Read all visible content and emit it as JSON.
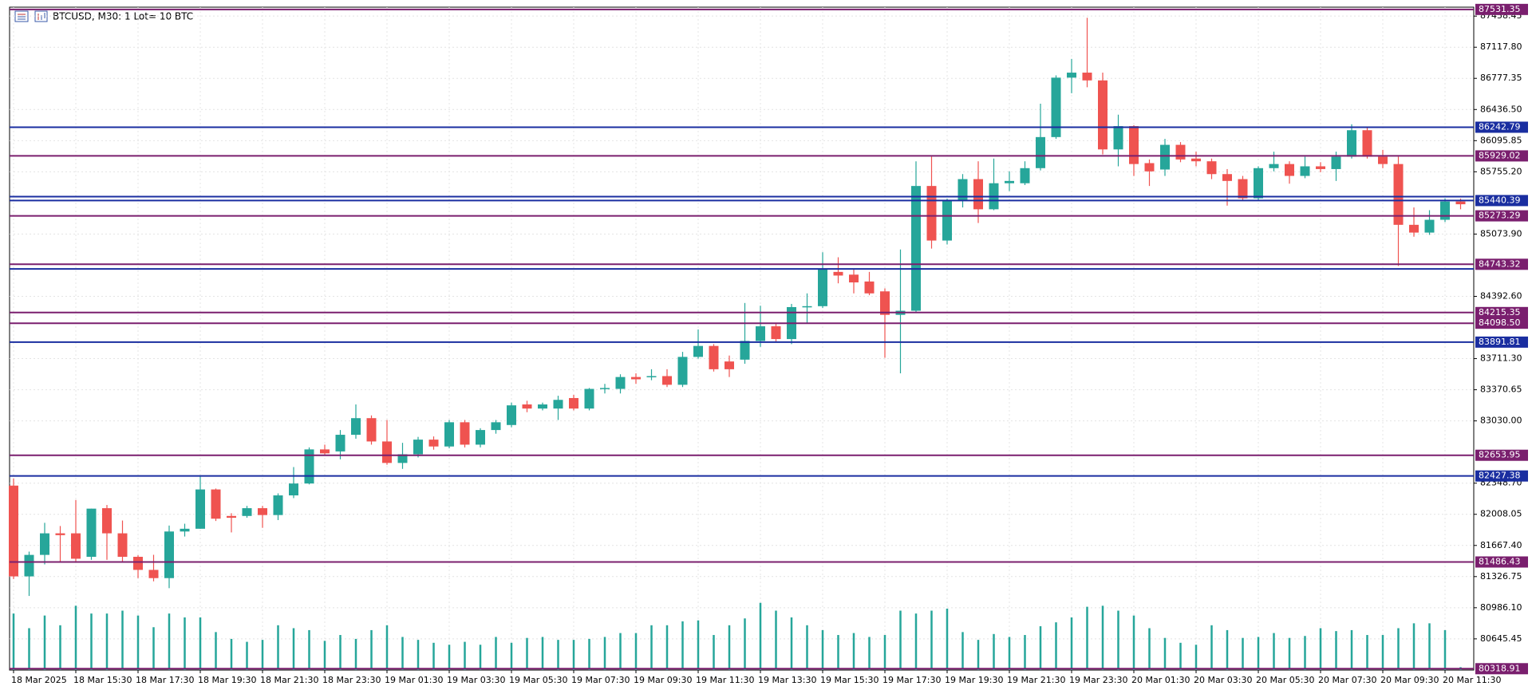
{
  "chart_data": {
    "type": "candlestick",
    "title": "BTCUSD, M30:  1 Lot= 10 BTC",
    "categories": [
      "18 Mar 2025",
      null,
      null,
      null,
      "18 Mar 15:30",
      null,
      null,
      null,
      "18 Mar 17:30",
      null,
      null,
      null,
      "18 Mar 19:30",
      null,
      null,
      null,
      "18 Mar 21:30",
      null,
      null,
      null,
      "18 Mar 23:30",
      null,
      null,
      null,
      "19 Mar 01:30",
      null,
      null,
      null,
      "19 Mar 03:30",
      null,
      null,
      null,
      "19 Mar 05:30",
      null,
      null,
      null,
      "19 Mar 07:30",
      null,
      null,
      null,
      "19 Mar 09:30",
      null,
      null,
      null,
      "19 Mar 11:30",
      null,
      null,
      null,
      "19 Mar 13:30",
      null,
      null,
      null,
      "19 Mar 15:30",
      null,
      null,
      null,
      "19 Mar 17:30",
      null,
      null,
      null,
      "19 Mar 19:30",
      null,
      null,
      null,
      "19 Mar 21:30",
      null,
      null,
      null,
      "19 Mar 23:30",
      null,
      null,
      null,
      "20 Mar 01:30",
      null,
      null,
      null,
      "20 Mar 03:30",
      null,
      null,
      null,
      "20 Mar 05:30",
      null,
      null,
      null,
      "20 Mar 07:30",
      null,
      null,
      null,
      "20 Mar 09:30",
      null,
      null,
      null,
      "20 Mar 11:30",
      null
    ],
    "open": [
      82322,
      81329,
      81564,
      81800,
      81800,
      81543,
      82075,
      81800,
      81543,
      81400,
      81310,
      81820,
      81850,
      82280,
      81990,
      81990,
      82075,
      82000,
      82215,
      82345,
      82718,
      82696,
      82878,
      83060,
      82805,
      82570,
      82665,
      82825,
      82750,
      83015,
      82770,
      82930,
      82985,
      83210,
      83165,
      83165,
      83280,
      83165,
      83380,
      83380,
      83510,
      83510,
      83520,
      83425,
      83730,
      83850,
      83680,
      83700,
      83905,
      84065,
      83925,
      84275,
      84285,
      84660,
      84630,
      84555,
      84447,
      84190,
      84235,
      85600,
      85003,
      85440,
      85675,
      85345,
      85630,
      85630,
      85795,
      86135,
      86785,
      86840,
      86755,
      86000,
      86255,
      85850,
      85780,
      86050,
      85900,
      85870,
      85730,
      85675,
      85465,
      85795,
      85840,
      85710,
      85815,
      85785,
      85920,
      86210,
      85920,
      85840,
      85175,
      85090,
      85230,
      85430
    ],
    "high": [
      82400,
      81600,
      81915,
      81880,
      82165,
      82070,
      82110,
      81940,
      81560,
      81565,
      81885,
      81905,
      82420,
      82290,
      82020,
      82100,
      82100,
      82237,
      82525,
      82740,
      82770,
      82930,
      83210,
      83090,
      83040,
      82790,
      82855,
      82860,
      83040,
      83040,
      82950,
      83040,
      83230,
      83250,
      83230,
      83305,
      83315,
      83390,
      83435,
      83540,
      83550,
      83595,
      83595,
      83785,
      84030,
      83870,
      83745,
      84320,
      84290,
      84105,
      84310,
      84425,
      84875,
      84820,
      84685,
      84660,
      84480,
      84905,
      85870,
      85922,
      85462,
      85730,
      85870,
      85900,
      85760,
      85870,
      86500,
      86810,
      86990,
      87440,
      86840,
      86380,
      86265,
      85890,
      86115,
      86080,
      85975,
      85900,
      85785,
      85710,
      85815,
      85975,
      85870,
      85920,
      85860,
      85975,
      86275,
      86240,
      85995,
      85920,
      85365,
      85335,
      85465,
      85462
    ],
    "low": [
      81300,
      81115,
      81460,
      81490,
      81490,
      81510,
      81510,
      81490,
      81310,
      81275,
      81200,
      81765,
      81850,
      81935,
      81810,
      81970,
      81860,
      81945,
      82185,
      82335,
      82653,
      82610,
      82835,
      82770,
      82550,
      82505,
      82630,
      82715,
      82730,
      82740,
      82740,
      82890,
      82960,
      83125,
      83145,
      83040,
      83145,
      83145,
      83330,
      83330,
      83435,
      83475,
      83400,
      83400,
      83710,
      83570,
      83510,
      83655,
      83840,
      83900,
      83870,
      84105,
      84265,
      84535,
      84425,
      84405,
      83720,
      83550,
      84210,
      84915,
      84960,
      85365,
      85195,
      85335,
      85545,
      85610,
      85770,
      86115,
      86615,
      86680,
      85945,
      85815,
      85710,
      85600,
      85710,
      85860,
      85815,
      85675,
      85385,
      85440,
      85440,
      85760,
      85625,
      85685,
      85750,
      85655,
      85900,
      85900,
      85795,
      84725,
      85045,
      85065,
      85205,
      85345
    ],
    "close": [
      81329,
      81564,
      81800,
      81780,
      81522,
      82070,
      81800,
      81543,
      81400,
      81310,
      81820,
      81850,
      82280,
      81960,
      81970,
      82075,
      82000,
      82215,
      82345,
      82718,
      82675,
      82878,
      83060,
      82805,
      82570,
      82665,
      82825,
      82750,
      83015,
      82770,
      82930,
      83015,
      83200,
      83165,
      83210,
      83260,
      83165,
      83380,
      83390,
      83510,
      83485,
      83520,
      83425,
      83730,
      83850,
      83595,
      83595,
      83905,
      84065,
      83925,
      84275,
      84285,
      84690,
      84620,
      84545,
      84425,
      84190,
      84235,
      85600,
      85003,
      85440,
      85675,
      85345,
      85630,
      85655,
      85795,
      86135,
      86785,
      86840,
      86755,
      86000,
      86255,
      85840,
      85760,
      86050,
      85890,
      85870,
      85730,
      85655,
      85465,
      85795,
      85840,
      85710,
      85815,
      85785,
      85920,
      86210,
      85920,
      85840,
      85175,
      85090,
      85230,
      85430,
      85400
    ],
    "volume": [
      2900,
      2150,
      2800,
      2300,
      3300,
      2900,
      2900,
      3050,
      2800,
      2200,
      2900,
      2700,
      2700,
      1950,
      1600,
      1450,
      1550,
      2300,
      2150,
      2050,
      1500,
      1800,
      1600,
      2050,
      2300,
      1700,
      1550,
      1400,
      1300,
      1450,
      1300,
      1700,
      1400,
      1650,
      1700,
      1550,
      1550,
      1600,
      1700,
      1900,
      1900,
      2300,
      2300,
      2500,
      2550,
      1800,
      2300,
      2650,
      3450,
      3050,
      2700,
      2300,
      2050,
      1800,
      1900,
      1700,
      1800,
      3050,
      2900,
      3050,
      3150,
      1950,
      1550,
      1850,
      1700,
      1800,
      2250,
      2450,
      2700,
      3250,
      3300,
      3050,
      2800,
      2150,
      1650,
      1400,
      1300,
      2300,
      2050,
      1650,
      1700,
      1900,
      1650,
      1750,
      2150,
      2000,
      2050,
      1800,
      1800,
      2150,
      2400,
      2400,
      2050,
      150
    ],
    "up_color": "#26a69a",
    "down_color": "#ef5350",
    "volume_color": "#26a69a",
    "ylim": [
      80304,
      87556
    ],
    "volume_lim": [
      0,
      7000
    ],
    "yticks": [
      {
        "value": 87458.45,
        "label": "87458.45"
      },
      {
        "value": 87117.8,
        "label": "87117.80"
      },
      86777.35,
      {
        "value": 86436.5,
        "label": "86436.50"
      },
      86095.85,
      {
        "value": 85755.2,
        "label": "85755.20"
      },
      {
        "value": 85073.9,
        "label": "85073.90"
      },
      {
        "value": 84392.6,
        "label": "84392.60"
      },
      {
        "value": 83711.3,
        "label": "83711.30"
      },
      83370.65,
      {
        "value": 83030,
        "label": "83030.00"
      },
      {
        "value": 82348.7,
        "label": "82348.70"
      },
      82008.05,
      {
        "value": 81667.4,
        "label": "81667.40"
      },
      81326.75,
      {
        "value": 80986.1,
        "label": "80986.10"
      },
      80645.45
    ],
    "grid": true,
    "levels": [
      {
        "value": 87531.35,
        "label": "87531.35",
        "color": "#7a1f6e"
      },
      {
        "value": 86242.79,
        "label": "86242.79",
        "color": "#1a2ea0"
      },
      {
        "value": 85929.02,
        "label": "85929.02",
        "color": "#7a1f6e"
      },
      {
        "value": 85483,
        "label": null,
        "color": "#1a2ea0"
      },
      {
        "value": 85440.39,
        "label": "85440.39",
        "color": "#1a2ea0"
      },
      {
        "value": 85273.29,
        "label": "85273.29",
        "color": "#7a1f6e"
      },
      {
        "value": 84743.32,
        "label": "84743.32",
        "color": "#7a1f6e"
      },
      {
        "value": 84693,
        "label": null,
        "color": "#1a2ea0"
      },
      {
        "value": 84215.35,
        "label": "84215.35",
        "color": "#7a1f6e"
      },
      {
        "value": 84098.5,
        "label": "84098.50",
        "color": "#7a1f6e"
      },
      {
        "value": 83891.81,
        "label": "83891.81",
        "color": "#1a2ea0"
      },
      {
        "value": 82653.95,
        "label": "82653.95",
        "color": "#7a1f6e"
      },
      {
        "value": 82427.38,
        "label": "82427.38",
        "color": "#1a2ea0"
      },
      {
        "value": 81486.43,
        "label": "81486.43",
        "color": "#7a1f6e"
      },
      {
        "value": 80318.91,
        "label": "80318.91",
        "color": "#7a1f6e"
      }
    ]
  }
}
